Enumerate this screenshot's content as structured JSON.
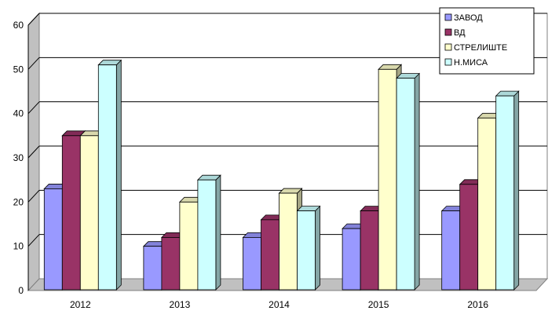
{
  "chart_data": {
    "type": "bar",
    "categories": [
      "2012",
      "2013",
      "2014",
      "2015",
      "2016"
    ],
    "series": [
      {
        "name": "ЗАВОД",
        "values": [
          23,
          10,
          12,
          14,
          18
        ],
        "color": "#9999ff"
      },
      {
        "name": "ВД",
        "values": [
          35,
          12,
          16,
          18,
          24
        ],
        "color": "#993366"
      },
      {
        "name": "СТРЕЛИШТЕ",
        "values": [
          35,
          20,
          22,
          50,
          39
        ],
        "color": "#ffffcc"
      },
      {
        "name": "Н.МИСА",
        "values": [
          51,
          25,
          18,
          48,
          44
        ],
        "color": "#ccffff"
      }
    ],
    "ylim": [
      0,
      60
    ],
    "yticks": [
      0,
      10,
      20,
      30,
      40,
      50,
      60
    ],
    "grid": true,
    "legend_position": "top-right",
    "style": "3d-clustered-columns",
    "wall_color": "#c0c0c0"
  }
}
